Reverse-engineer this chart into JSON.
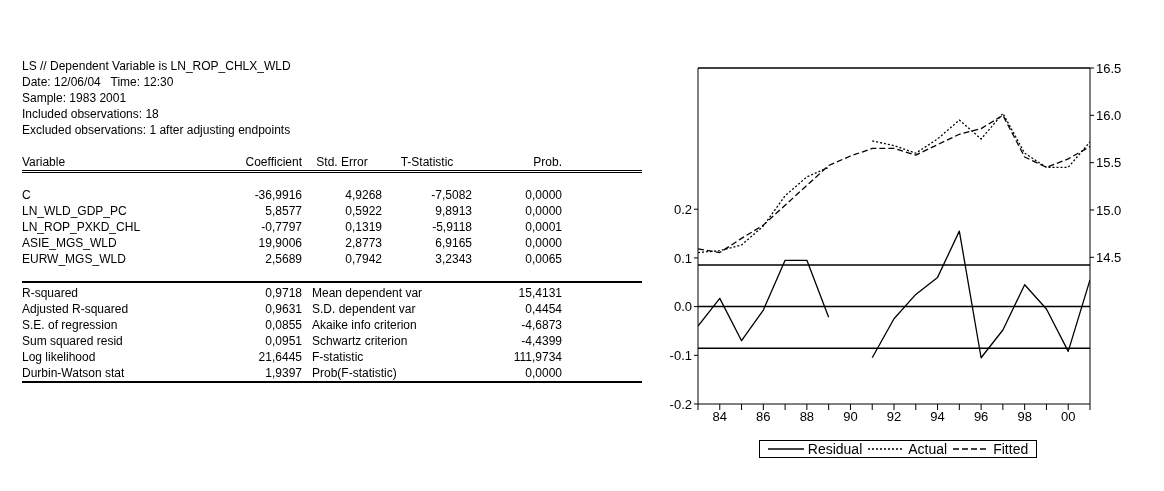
{
  "chart_data": [
    {
      "type": "other",
      "annotations": [
        "LS // Dependent Variable is LN_ROP_CHLX_WLD",
        "Date: 12/06/04   Time: 12:30",
        "Sample: 1983 2001",
        "Included observations: 18",
        "Excluded observations: 1 after adjusting endpoints",
        "Variable",
        "Coefficient",
        "Std. Error",
        "T-Statistic",
        "Prob.",
        "C",
        "-36,9916",
        "4,9268",
        "-7,5082",
        "0,0000",
        "LN_WLD_GDP_PC",
        "5,8577",
        "0,5922",
        "9,8913",
        "0,0000",
        "LN_ROP_PXKD_CHL",
        "-0,7797",
        "0,1319",
        "-5,9118",
        "0,0001",
        "ASIE_MGS_WLD",
        "19,9006",
        "2,8773",
        "6,9165",
        "0,0000",
        "EURW_MGS_WLD",
        "2,5689",
        "0,7942",
        "3,2343",
        "0,0065",
        "R-squared",
        "0,9718",
        "Mean dependent var",
        "15,4131",
        "Adjusted R-squared",
        "0,9631",
        "S.D. dependent var",
        "0,4454",
        "S.E. of regression",
        "0,0855",
        "Akaike info criterion",
        "-4,6873",
        "Sum squared resid",
        "0,0951",
        "Schwartz criterion",
        "-4,4399",
        "Log likelihood",
        "21,6445",
        "F-statistic",
        "111,9734",
        "Durbin-Watson stat",
        "1,9397",
        "Prob(F-statistic)",
        "0,0000"
      ]
    },
    {
      "type": "line",
      "x": [
        1983,
        1984,
        1985,
        1986,
        1987,
        1988,
        1989,
        1990,
        1991,
        1992,
        1993,
        1994,
        1995,
        1996,
        1997,
        1998,
        1999,
        2000,
        2001
      ],
      "series": [
        {
          "name": "Residual",
          "color": "#000000",
          "line_style": "solid",
          "values": [
            -0.04,
            0.017,
            -0.07,
            -0.007,
            0.095,
            0.095,
            -0.022,
            null,
            -0.105,
            -0.025,
            0.025,
            0.06,
            0.155,
            -0.105,
            -0.048,
            0.045,
            -0.005,
            -0.092,
            0.055
          ]
        },
        {
          "name": "Actual",
          "color": "#000000",
          "line_style": "dotted",
          "axis": "y2",
          "values": [
            14.55,
            14.57,
            14.63,
            14.83,
            15.15,
            15.35,
            15.45,
            null,
            15.73,
            15.68,
            15.6,
            15.75,
            15.95,
            15.75,
            16.02,
            15.6,
            15.45,
            15.45,
            15.72
          ]
        },
        {
          "name": "Fitted",
          "color": "#000000",
          "line_style": "dashed",
          "axis": "y2",
          "values": [
            14.59,
            14.55,
            14.7,
            14.84,
            15.05,
            15.26,
            15.47,
            15.57,
            15.65,
            15.65,
            15.58,
            15.69,
            15.8,
            15.86,
            16.0,
            15.56,
            15.45,
            15.54,
            15.67
          ]
        }
      ],
      "xlim": [
        1983,
        2001
      ],
      "xticks": [
        {
          "value": 1983,
          "label": null
        },
        {
          "value": 1984,
          "label": "84"
        },
        {
          "value": 1985,
          "label": null
        },
        {
          "value": 1986,
          "label": "86"
        },
        {
          "value": 1987,
          "label": null
        },
        {
          "value": 1988,
          "label": "88"
        },
        {
          "value": 1989,
          "label": null
        },
        {
          "value": 1990,
          "label": "90"
        },
        {
          "value": 1991,
          "label": null
        },
        {
          "value": 1992,
          "label": "92"
        },
        {
          "value": 1993,
          "label": null
        },
        {
          "value": 1994,
          "label": "94"
        },
        {
          "value": 1995,
          "label": null
        },
        {
          "value": 1996,
          "label": "96"
        },
        {
          "value": 1997,
          "label": null
        },
        {
          "value": 1998,
          "label": "98"
        },
        {
          "value": 1999,
          "label": null
        },
        {
          "value": 2000,
          "label": "00"
        },
        {
          "value": 2001,
          "label": null
        }
      ],
      "ylim": [
        -0.2,
        0.49
      ],
      "yticks": [
        -0.2,
        -0.1,
        {
          "value": 0,
          "label": "0.0"
        },
        0.1,
        0.2
      ],
      "y2lim": [
        12.95,
        16.5
      ],
      "y2ticks": [
        14.5,
        {
          "value": 15,
          "label": "15.0"
        },
        15.5,
        {
          "value": 16,
          "label": "16.0"
        },
        16.5
      ],
      "ref_lines": [
        {
          "axis": "y",
          "value": 0.0855,
          "label": null
        },
        {
          "axis": "y",
          "value": 0,
          "label": null
        },
        {
          "axis": "y",
          "value": -0.0855,
          "label": null
        }
      ],
      "grid": false,
      "legend": "bottom"
    }
  ]
}
